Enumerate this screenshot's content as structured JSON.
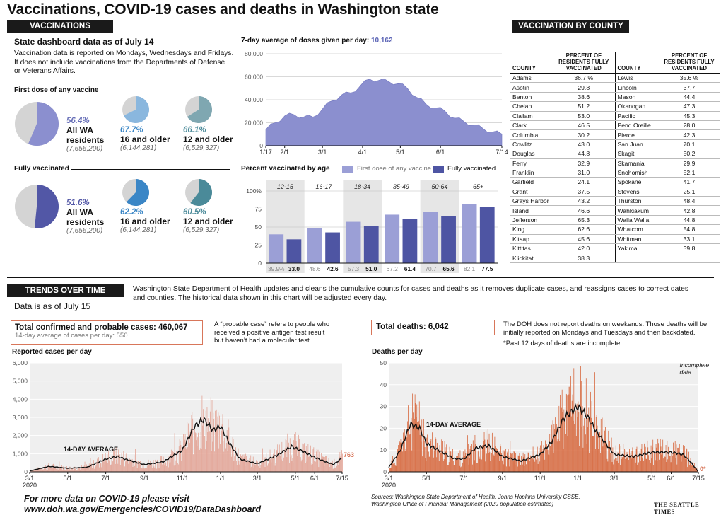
{
  "title": "Vaccinations, COVID-19 cases and deaths in Washington state",
  "vaccinations": {
    "header": "VACCINATIONS",
    "dashboard_date": "State dashboard data as of July 14",
    "note_line1": "Vaccination data is reported on Mondays, Wednesdays and Fridays.",
    "note_line2": "It does not include vaccinations from the Departments of Defense",
    "note_line3": "or Veterans Affairs.",
    "first_dose_label": "First dose of any vaccine",
    "fully_label": "Fully vaccinated",
    "first_dose": [
      {
        "pct": "56.4%",
        "group1": "All WA",
        "group2": "residents",
        "pop": "(7,656,200)",
        "value": 56.4,
        "color": "#8b8fcf"
      },
      {
        "pct": "67.7%",
        "group1": "16 and older",
        "group2": "",
        "pop": "(6,144,281)",
        "value": 67.7,
        "color": "#8ab7de"
      },
      {
        "pct": "66.1%",
        "group1": "12 and older",
        "group2": "",
        "pop": "(6,529,327)",
        "value": 66.1,
        "color": "#7fa7b1"
      }
    ],
    "fully": [
      {
        "pct": "51.6%",
        "group1": "All WA",
        "group2": "residents",
        "pop": "(7,656,200)",
        "value": 51.6,
        "color": "#5257a6"
      },
      {
        "pct": "62.2%",
        "group1": "16 and older",
        "group2": "",
        "pop": "(6,144,281)",
        "value": 62.2,
        "color": "#3a86c6"
      },
      {
        "pct": "60.5%",
        "group1": "12 and older",
        "group2": "",
        "pop": "(6,529,327)",
        "value": 60.5,
        "color": "#4a8a99"
      }
    ]
  },
  "doses_chart": {
    "title_prefix": "7-day average of doses given per day: ",
    "title_value": "10,162"
  },
  "age_chart": {
    "title": "Percent vaccinated by age",
    "legend_first": "First dose of any vaccine",
    "legend_fully": "Fully vaccinated"
  },
  "county": {
    "header": "VACCINATION BY COUNTY",
    "col_county": "COUNTY",
    "col_pct": "PERCENT OF RESIDENTS FULLY VACCINATED",
    "left": [
      [
        "Adams",
        "36.7 %"
      ],
      [
        "Asotin",
        "29.8"
      ],
      [
        "Benton",
        "38.6"
      ],
      [
        "Chelan",
        "51.2"
      ],
      [
        "Clallam",
        "53.0"
      ],
      [
        "Clark",
        "46.5"
      ],
      [
        "Columbia",
        "30.2"
      ],
      [
        "Cowlitz",
        "43.0"
      ],
      [
        "Douglas",
        "44.8"
      ],
      [
        "Ferry",
        "32.9"
      ],
      [
        "Franklin",
        "31.0"
      ],
      [
        "Garfield",
        "24.1"
      ],
      [
        "Grant",
        "37.5"
      ],
      [
        "Grays Harbor",
        "43.2"
      ],
      [
        "Island",
        "46.6"
      ],
      [
        "Jefferson",
        "65.3"
      ],
      [
        "King",
        "62.6"
      ],
      [
        "Kitsap",
        "45.6"
      ],
      [
        "Kittitas",
        "42.0"
      ],
      [
        "Klickitat",
        "38.3"
      ]
    ],
    "right": [
      [
        "Lewis",
        "35.6 %"
      ],
      [
        "Lincoln",
        "37.7"
      ],
      [
        "Mason",
        "44.4"
      ],
      [
        "Okanogan",
        "47.3"
      ],
      [
        "Pacific",
        "45.3"
      ],
      [
        "Pend Oreille",
        "28.0"
      ],
      [
        "Pierce",
        "42.3"
      ],
      [
        "San Juan",
        "70.1"
      ],
      [
        "Skagit",
        "50.2"
      ],
      [
        "Skamania",
        "29.9"
      ],
      [
        "Snohomish",
        "52.1"
      ],
      [
        "Spokane",
        "41.7"
      ],
      [
        "Stevens",
        "25.1"
      ],
      [
        "Thurston",
        "48.4"
      ],
      [
        "Wahkiakum",
        "42.8"
      ],
      [
        "Walla Walla",
        "44.8"
      ],
      [
        "Whatcom",
        "54.8"
      ],
      [
        "Whitman",
        "33.1"
      ],
      [
        "Yakima",
        "39.8"
      ],
      [
        "",
        ""
      ]
    ]
  },
  "trends": {
    "header": "TRENDS OVER TIME",
    "data_date": "Data is as of July 15",
    "note_line1": "Washington State Department of Health updates and cleans the cumulative counts for cases and deaths as it removes duplicate cases, and reassigns cases to correct dates",
    "note_line2": "and counties. The historical data shown in this chart will be adjusted every day."
  },
  "cases": {
    "total_label": "Total confirmed and probable cases: 460,067",
    "avg_label": "14-day average of cases per day: 550",
    "probable_note1": "A “probable case” refers to people who",
    "probable_note2": "received a positive antigen test result",
    "probable_note3": "but haven’t had a molecular test.",
    "chart_title": "Reported cases per day",
    "avg_tag": "14-DAY AVERAGE",
    "end_value": "763"
  },
  "deaths": {
    "total_label": "Total deaths: 6,042",
    "note_line1": "The DOH does not report deaths on weekends. Those deaths will be",
    "note_line2": "initially reported on Mondays and Tuesdays and then backdated.",
    "note_line3": "*Past 12 days of deaths are incomplete.",
    "chart_title": "Deaths per day",
    "avg_tag": "14-DAY AVERAGE",
    "incomplete1": "Incomplete",
    "incomplete2": "data",
    "end_value": "0*"
  },
  "footer": {
    "line1": "For more data on COVID-19 please visit",
    "line2": "www.doh.wa.gov/Emergencies/COVID19/DataDashboard",
    "sources1": "Sources: Washington State Department of Health, Johns Hopkins University CSSE,",
    "sources2": "Washington Office of Financial Management (2020 population estimates)",
    "brand": "THE SEATTLE TIMES"
  },
  "chart_data": [
    {
      "type": "area",
      "title": "7-day average of doses given per day: 10,162",
      "x_ticks": [
        "1/17",
        "2/1",
        "3/1",
        "4/1",
        "5/1",
        "6/1",
        "7/14"
      ],
      "ylim": [
        0,
        80000
      ],
      "y_ticks": [
        "0",
        "20,000",
        "40,000",
        "60,000",
        "80,000"
      ],
      "x": [
        "1/17",
        "1/24",
        "2/1",
        "2/8",
        "2/15",
        "2/22",
        "3/1",
        "3/8",
        "3/15",
        "3/22",
        "3/29",
        "4/5",
        "4/12",
        "4/19",
        "4/26",
        "5/3",
        "5/10",
        "5/17",
        "5/24",
        "5/31",
        "6/7",
        "6/14",
        "6/21",
        "6/28",
        "7/5",
        "7/14"
      ],
      "values": [
        14000,
        20000,
        26000,
        27000,
        25000,
        25000,
        32000,
        39000,
        44000,
        46000,
        52000,
        58000,
        57000,
        56000,
        54000,
        50000,
        42000,
        36000,
        33000,
        30000,
        24000,
        21000,
        18000,
        15000,
        12000,
        10162
      ]
    },
    {
      "type": "bar",
      "title": "Percent vaccinated by age",
      "categories": [
        "12-15",
        "16-17",
        "18-34",
        "35-49",
        "50-64",
        "65+"
      ],
      "ylim": [
        0,
        100
      ],
      "y_ticks": [
        "0",
        "25",
        "50",
        "75",
        "100%"
      ],
      "series": [
        {
          "name": "First dose of any vaccine",
          "values": [
            39.9,
            48.6,
            57.3,
            67.2,
            70.7,
            82.1
          ],
          "labels": [
            "39.9%",
            "48.6",
            "57.3",
            "67.2",
            "70.7",
            "82.1"
          ],
          "color": "#9b9fd6"
        },
        {
          "name": "Fully vaccinated",
          "values": [
            33.0,
            42.6,
            51.0,
            61.4,
            65.6,
            77.5
          ],
          "labels": [
            "33.0",
            "42.6",
            "51.0",
            "61.4",
            "65.6",
            "77.5"
          ],
          "color": "#4e55a3"
        }
      ]
    },
    {
      "type": "bar",
      "title": "Reported cases per day",
      "x_ticks": [
        "3/1 2020",
        "5/1",
        "7/1",
        "9/1",
        "11/1",
        "1/1",
        "3/1",
        "5/1",
        "6/1",
        "7/15"
      ],
      "ylim": [
        0,
        6000
      ],
      "y_ticks": [
        "0",
        "1,000",
        "2,000",
        "3,000",
        "4,000",
        "5,000",
        "6,000"
      ],
      "avg_x": [
        "3/1",
        "4/1",
        "5/1",
        "6/1",
        "7/1",
        "7/20",
        "8/1",
        "9/1",
        "10/1",
        "11/1",
        "11/20",
        "12/5",
        "12/20",
        "1/1",
        "1/15",
        "2/1",
        "3/1",
        "4/1",
        "4/25",
        "5/15",
        "6/1",
        "6/15",
        "7/1",
        "7/15"
      ],
      "avg_values": [
        50,
        300,
        200,
        250,
        700,
        850,
        700,
        400,
        550,
        1200,
        2500,
        2900,
        2300,
        2500,
        1600,
        700,
        450,
        900,
        1400,
        1100,
        800,
        600,
        400,
        763
      ]
    },
    {
      "type": "bar",
      "title": "Deaths per day",
      "x_ticks": [
        "3/1 2020",
        "5/1",
        "7/1",
        "9/1",
        "11/1",
        "1/1",
        "3/1",
        "5/1",
        "6/1",
        "7/15"
      ],
      "ylim": [
        0,
        50
      ],
      "y_ticks": [
        "0",
        "10",
        "20",
        "30",
        "40",
        "50"
      ],
      "avg_x": [
        "3/1",
        "3/20",
        "4/5",
        "4/20",
        "5/1",
        "5/20",
        "6/15",
        "7/1",
        "7/20",
        "8/10",
        "9/1",
        "10/1",
        "11/1",
        "11/20",
        "12/10",
        "1/1",
        "1/15",
        "2/1",
        "3/1",
        "4/1",
        "5/1",
        "6/1",
        "6/20",
        "7/1",
        "7/15"
      ],
      "avg_values": [
        2,
        10,
        22,
        20,
        13,
        10,
        6,
        6,
        11,
        12,
        7,
        5,
        8,
        14,
        25,
        30,
        26,
        18,
        8,
        7,
        9,
        9,
        8,
        5,
        0
      ]
    }
  ]
}
